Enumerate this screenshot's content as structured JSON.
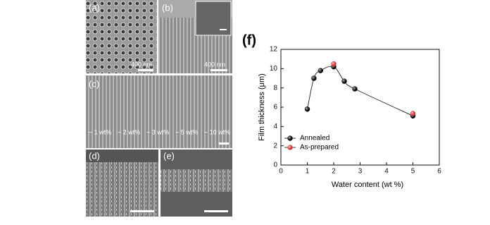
{
  "panels": [
    {
      "label": "(a)",
      "scale": "400 nm"
    },
    {
      "label": "(b)",
      "scale": "400 nm"
    },
    {
      "label": "(c)",
      "notes": [
        "~ 1 wt%",
        "~ 2 wt%",
        "~ 3 wt%",
        "~ 5 wt%",
        "~ 10 wt%"
      ]
    },
    {
      "label": "(d)"
    },
    {
      "label": "(e)"
    }
  ],
  "chart_data": {
    "type": "line",
    "panel_label": "(f)",
    "x_label": "Water content (wt %)",
    "y_label": "Film thickness (μm)",
    "xlim": [
      0,
      6
    ],
    "xticks": [
      0,
      1,
      2,
      3,
      4,
      5,
      6
    ],
    "ylim": [
      0,
      12
    ],
    "yticks": [
      0,
      2,
      4,
      6,
      8,
      10,
      12
    ],
    "legend": "lower left",
    "series": [
      {
        "name": "Annealed",
        "color": "#111111",
        "x": [
          1,
          1.25,
          1.5,
          2,
          2.4,
          2.8,
          5
        ],
        "values": [
          5.8,
          9.0,
          9.8,
          10.2,
          8.7,
          7.9,
          5.1
        ]
      },
      {
        "name": "As-prepared",
        "color": "#e04848",
        "x": [
          2,
          5
        ],
        "values": [
          10.5,
          5.35
        ]
      }
    ]
  }
}
